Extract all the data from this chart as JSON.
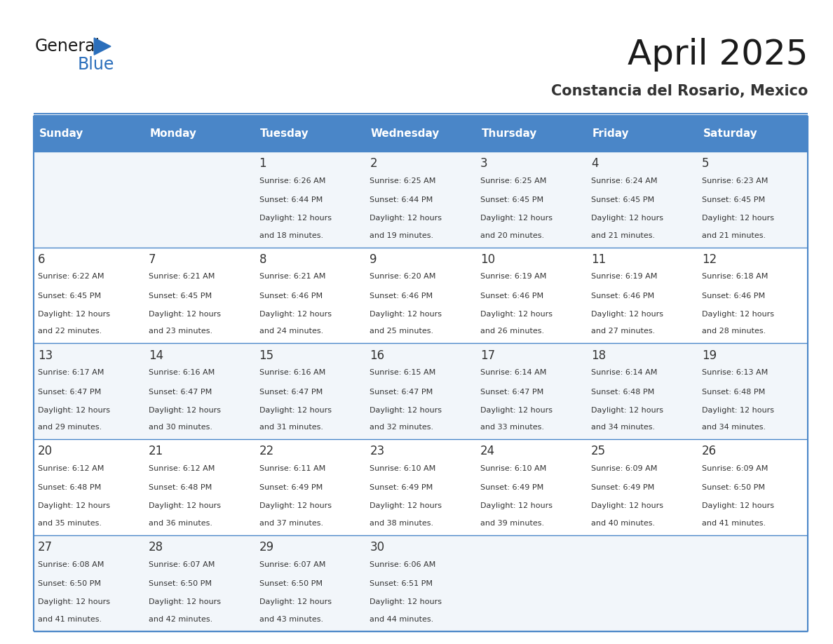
{
  "title": "April 2025",
  "subtitle": "Constancia del Rosario, Mexico",
  "header_color": "#4a86c8",
  "header_text_color": "#ffffff",
  "border_color": "#4a86c8",
  "text_color": "#333333",
  "days_of_week": [
    "Sunday",
    "Monday",
    "Tuesday",
    "Wednesday",
    "Thursday",
    "Friday",
    "Saturday"
  ],
  "weeks": [
    [
      {
        "day": "",
        "sunrise": "",
        "sunset": "",
        "daylight_min": null
      },
      {
        "day": "",
        "sunrise": "",
        "sunset": "",
        "daylight_min": null
      },
      {
        "day": "1",
        "sunrise": "6:26 AM",
        "sunset": "6:44 PM",
        "daylight_min": 18
      },
      {
        "day": "2",
        "sunrise": "6:25 AM",
        "sunset": "6:44 PM",
        "daylight_min": 19
      },
      {
        "day": "3",
        "sunrise": "6:25 AM",
        "sunset": "6:45 PM",
        "daylight_min": 20
      },
      {
        "day": "4",
        "sunrise": "6:24 AM",
        "sunset": "6:45 PM",
        "daylight_min": 21
      },
      {
        "day": "5",
        "sunrise": "6:23 AM",
        "sunset": "6:45 PM",
        "daylight_min": 21
      }
    ],
    [
      {
        "day": "6",
        "sunrise": "6:22 AM",
        "sunset": "6:45 PM",
        "daylight_min": 22
      },
      {
        "day": "7",
        "sunrise": "6:21 AM",
        "sunset": "6:45 PM",
        "daylight_min": 23
      },
      {
        "day": "8",
        "sunrise": "6:21 AM",
        "sunset": "6:46 PM",
        "daylight_min": 24
      },
      {
        "day": "9",
        "sunrise": "6:20 AM",
        "sunset": "6:46 PM",
        "daylight_min": 25
      },
      {
        "day": "10",
        "sunrise": "6:19 AM",
        "sunset": "6:46 PM",
        "daylight_min": 26
      },
      {
        "day": "11",
        "sunrise": "6:19 AM",
        "sunset": "6:46 PM",
        "daylight_min": 27
      },
      {
        "day": "12",
        "sunrise": "6:18 AM",
        "sunset": "6:46 PM",
        "daylight_min": 28
      }
    ],
    [
      {
        "day": "13",
        "sunrise": "6:17 AM",
        "sunset": "6:47 PM",
        "daylight_min": 29
      },
      {
        "day": "14",
        "sunrise": "6:16 AM",
        "sunset": "6:47 PM",
        "daylight_min": 30
      },
      {
        "day": "15",
        "sunrise": "6:16 AM",
        "sunset": "6:47 PM",
        "daylight_min": 31
      },
      {
        "day": "16",
        "sunrise": "6:15 AM",
        "sunset": "6:47 PM",
        "daylight_min": 32
      },
      {
        "day": "17",
        "sunrise": "6:14 AM",
        "sunset": "6:47 PM",
        "daylight_min": 33
      },
      {
        "day": "18",
        "sunrise": "6:14 AM",
        "sunset": "6:48 PM",
        "daylight_min": 34
      },
      {
        "day": "19",
        "sunrise": "6:13 AM",
        "sunset": "6:48 PM",
        "daylight_min": 34
      }
    ],
    [
      {
        "day": "20",
        "sunrise": "6:12 AM",
        "sunset": "6:48 PM",
        "daylight_min": 35
      },
      {
        "day": "21",
        "sunrise": "6:12 AM",
        "sunset": "6:48 PM",
        "daylight_min": 36
      },
      {
        "day": "22",
        "sunrise": "6:11 AM",
        "sunset": "6:49 PM",
        "daylight_min": 37
      },
      {
        "day": "23",
        "sunrise": "6:10 AM",
        "sunset": "6:49 PM",
        "daylight_min": 38
      },
      {
        "day": "24",
        "sunrise": "6:10 AM",
        "sunset": "6:49 PM",
        "daylight_min": 39
      },
      {
        "day": "25",
        "sunrise": "6:09 AM",
        "sunset": "6:49 PM",
        "daylight_min": 40
      },
      {
        "day": "26",
        "sunrise": "6:09 AM",
        "sunset": "6:50 PM",
        "daylight_min": 41
      }
    ],
    [
      {
        "day": "27",
        "sunrise": "6:08 AM",
        "sunset": "6:50 PM",
        "daylight_min": 41
      },
      {
        "day": "28",
        "sunrise": "6:07 AM",
        "sunset": "6:50 PM",
        "daylight_min": 42
      },
      {
        "day": "29",
        "sunrise": "6:07 AM",
        "sunset": "6:50 PM",
        "daylight_min": 43
      },
      {
        "day": "30",
        "sunrise": "6:06 AM",
        "sunset": "6:51 PM",
        "daylight_min": 44
      },
      {
        "day": "",
        "sunrise": "",
        "sunset": "",
        "daylight_min": null
      },
      {
        "day": "",
        "sunrise": "",
        "sunset": "",
        "daylight_min": null
      },
      {
        "day": "",
        "sunrise": "",
        "sunset": "",
        "daylight_min": null
      }
    ]
  ]
}
